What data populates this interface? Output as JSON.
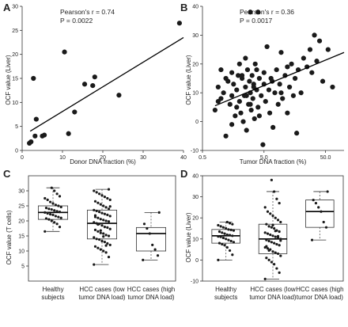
{
  "chart_data": [
    {
      "panel": "A",
      "type": "scatter",
      "xlabel": "Donor DNA fraction (%)",
      "ylabel": "OCF value (Liver)",
      "xlim": [
        0,
        40
      ],
      "ylim": [
        0,
        30
      ],
      "xticks": [
        0,
        10,
        20,
        30,
        40
      ],
      "yticks": [
        0,
        5,
        10,
        15,
        20,
        25,
        30
      ],
      "annotation": [
        "Pearson's r = 0.74",
        "P = 0.0022"
      ],
      "regression": {
        "x": [
          2,
          40
        ],
        "y": [
          4.0,
          23.5
        ]
      },
      "points": {
        "x": [
          1.8,
          2.2,
          2.8,
          3.2,
          3.5,
          5.0,
          5.5,
          10.5,
          11.5,
          13.0,
          15.5,
          17.5,
          18.0,
          24.0,
          39.0
        ],
        "y": [
          1.5,
          1.8,
          15.0,
          3.0,
          6.5,
          3.0,
          3.2,
          20.5,
          3.5,
          8.0,
          13.8,
          13.5,
          15.3,
          11.5,
          26.5
        ]
      }
    },
    {
      "panel": "B",
      "type": "scatter",
      "xlabel": "Tumor DNA fraction (%)",
      "ylabel": "OCF value (Liver)",
      "xscale": "log",
      "xlim": [
        0.5,
        100
      ],
      "ylim": [
        -10,
        40
      ],
      "xticks": [
        0.5,
        5.0,
        50.0
      ],
      "xticklabels": [
        "0.5",
        "5.0",
        "50.0"
      ],
      "yticks": [
        -10,
        0,
        10,
        20,
        30,
        40
      ],
      "annotation": [
        "Pearson's r = 0.36",
        "P = 0.0017"
      ],
      "regression": {
        "x": [
          0.8,
          100
        ],
        "y": [
          5.5,
          24.0
        ]
      },
      "points": {
        "x": [
          0.8,
          0.9,
          1.0,
          1.0,
          1.1,
          1.2,
          1.3,
          1.4,
          1.5,
          1.5,
          1.6,
          1.7,
          1.8,
          1.9,
          2.0,
          2.0,
          2.1,
          2.2,
          2.3,
          2.4,
          2.5,
          2.5,
          2.6,
          2.7,
          2.8,
          2.9,
          3.0,
          3.0,
          3.1,
          3.2,
          3.3,
          3.4,
          3.5,
          3.6,
          3.8,
          4.0,
          4.0,
          4.2,
          4.5,
          4.8,
          5.0,
          5.0,
          5.3,
          5.6,
          6.0,
          6.2,
          6.5,
          7.0,
          7.5,
          8.0,
          8.5,
          9.0,
          9.5,
          10.0,
          11.0,
          12.0,
          13.0,
          14.0,
          15.0,
          16.0,
          18.0,
          20.0,
          22.0,
          25.0,
          28.0,
          30.0,
          33.0,
          36.0,
          40.0,
          45.0,
          55.0,
          65.0,
          0.9,
          1.2,
          1.5,
          1.8,
          2.2,
          2.6,
          3.0,
          3.4,
          3.8,
          4.2,
          6.8,
          9.5,
          12.0,
          17.0
        ],
        "y": [
          4,
          12,
          18,
          8,
          10,
          -5,
          14,
          6,
          17,
          9,
          13,
          2,
          11,
          16,
          7,
          20,
          3,
          15,
          0,
          9,
          12,
          22,
          -3,
          18,
          6,
          14,
          10,
          38,
          4,
          16,
          8,
          12,
          1,
          20,
          11,
          38,
          5,
          15,
          9,
          -8,
          13,
          17,
          7,
          26,
          11,
          3,
          15,
          -2,
          10,
          18,
          6,
          13,
          24,
          8,
          16,
          3,
          12,
          20,
          9,
          15,
          18,
          10,
          22,
          19,
          25,
          17,
          30,
          21,
          28,
          14,
          25,
          12,
          7,
          15,
          -1,
          5,
          16,
          9,
          6,
          13,
          18,
          2,
          14,
          10,
          19,
          -4
        ]
      }
    },
    {
      "panel": "C",
      "type": "box",
      "ylabel": "OCF value (T cells)",
      "ylim": [
        0,
        35
      ],
      "yticks": [
        5,
        10,
        15,
        20,
        25,
        30
      ],
      "categories": [
        "Healthy subjects",
        "HCC cases (low tumor DNA load)",
        "HCC cases (high tumor DNA load)"
      ],
      "boxes": [
        {
          "min": 16.5,
          "q1": 20.5,
          "median": 22.8,
          "q3": 25.0,
          "max": 31.0
        },
        {
          "min": 5.5,
          "q1": 14.0,
          "median": 19.2,
          "q3": 23.6,
          "max": 30.5
        },
        {
          "min": 7.0,
          "q1": 10.0,
          "median": 15.8,
          "q3": 17.8,
          "max": 22.8
        }
      ],
      "points": [
        [
          16.5,
          18.0,
          19.0,
          19.5,
          20.0,
          20.5,
          20.8,
          21.0,
          21.3,
          21.6,
          22.0,
          22.2,
          22.5,
          22.8,
          23.0,
          23.2,
          23.5,
          23.8,
          24.0,
          24.3,
          24.6,
          25.0,
          25.3,
          25.8,
          26.3,
          27.0,
          27.5,
          28.2,
          29.0,
          30.0,
          31.0
        ],
        [
          5.5,
          8.0,
          9.5,
          10.0,
          10.5,
          11.0,
          11.5,
          12.0,
          12.5,
          13.0,
          13.3,
          13.8,
          14.0,
          14.5,
          15.0,
          15.3,
          15.8,
          16.0,
          16.5,
          17.0,
          17.3,
          17.8,
          18.0,
          18.5,
          19.0,
          19.2,
          19.5,
          19.8,
          20.0,
          20.3,
          20.6,
          21.0,
          21.3,
          21.6,
          22.0,
          22.3,
          22.6,
          23.0,
          23.3,
          23.6,
          24.0,
          24.5,
          25.0,
          25.5,
          26.0,
          26.5,
          27.0,
          27.5,
          28.0,
          28.5,
          29.0,
          29.5,
          30.0,
          30.5,
          11.8,
          14.8,
          16.8,
          18.8,
          21.8,
          24.8
        ],
        [
          7.0,
          8.5,
          10.5,
          12.0,
          15.8,
          17.5,
          19.0,
          22.8
        ]
      ]
    },
    {
      "panel": "D",
      "type": "box",
      "ylabel": "OCF value (Liver)",
      "ylim": [
        -10,
        40
      ],
      "yticks": [
        -10,
        0,
        10,
        20,
        30,
        40
      ],
      "categories": [
        "Healthy subjects",
        "HCC cases (low tumor DNA load)",
        "HCC cases (high tumor DNA load)"
      ],
      "boxes": [
        {
          "min": 0.0,
          "q1": 8.0,
          "median": 11.5,
          "q3": 14.5,
          "max": 18.0
        },
        {
          "min": -9.0,
          "q1": 3.0,
          "median": 10.0,
          "q3": 17.0,
          "max": 32.5
        },
        {
          "min": 9.5,
          "q1": 15.5,
          "median": 23.0,
          "q3": 28.5,
          "max": 32.5
        }
      ],
      "points": [
        [
          0.0,
          2.5,
          4.5,
          6.0,
          7.0,
          7.5,
          8.0,
          8.5,
          9.0,
          9.5,
          10.0,
          10.5,
          11.0,
          11.2,
          11.5,
          11.8,
          12.0,
          12.5,
          13.0,
          13.5,
          14.0,
          14.3,
          14.5,
          15.0,
          15.5,
          16.0,
          16.5,
          17.0,
          17.5,
          18.0
        ],
        [
          -9.0,
          -6.0,
          -4.0,
          -2.0,
          -1.0,
          0.0,
          1.0,
          2.0,
          3.0,
          3.5,
          4.0,
          5.0,
          5.5,
          6.0,
          7.0,
          7.5,
          8.0,
          8.5,
          9.0,
          9.5,
          10.0,
          10.5,
          11.0,
          11.5,
          12.0,
          12.5,
          13.0,
          13.5,
          14.0,
          15.0,
          15.5,
          16.0,
          17.0,
          18.0,
          19.0,
          20.0,
          21.0,
          22.0,
          23.0,
          25.0,
          27.0,
          29.0,
          32.5,
          38.0,
          4.5,
          6.5,
          9.2,
          11.3,
          13.8,
          16.5
        ],
        [
          9.5,
          15.5,
          18.0,
          23.0,
          25.0,
          27.0,
          28.5,
          32.5
        ]
      ]
    }
  ]
}
